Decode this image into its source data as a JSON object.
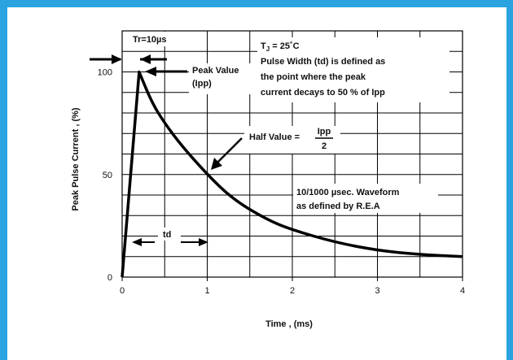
{
  "colors": {
    "frame": "#2aa3e0",
    "curve": "#000000",
    "grid": "#000000"
  },
  "chart_data": {
    "type": "line",
    "title": "",
    "xlabel": "Time , (ms)",
    "ylabel": "Peak Pulse Current , (%)",
    "xlim": [
      0,
      4
    ],
    "ylim": [
      0,
      120
    ],
    "x_ticks": [
      "0",
      "1",
      "2",
      "3",
      "4"
    ],
    "y_ticks": [
      "0",
      "50",
      "100"
    ],
    "grid": true,
    "series": [
      {
        "x": [
          0,
          0.2,
          0.35,
          0.5,
          0.7,
          1.0,
          1.3,
          1.7,
          2.0,
          2.5,
          3.0,
          3.5,
          4.0
        ],
        "y": [
          0,
          100,
          85,
          75,
          64,
          50,
          38,
          28,
          23,
          17,
          13,
          11,
          10
        ]
      }
    ],
    "annotations": {
      "tr": "Tr=10µs",
      "tj_line": "TJ = 25˚C",
      "pulse_def": [
        "Pulse Width (td) is defined as",
        "the point where the peak",
        "current decays to 50 % of Ipp"
      ],
      "peak_value": [
        "Peak Value",
        "(Ipp)"
      ],
      "half_value": "Half Value =",
      "half_num": "Ipp",
      "half_den": "2",
      "waveform": [
        "10/1000 µsec. Waveform",
        "as defined by R.E.A"
      ],
      "td": "td"
    }
  }
}
